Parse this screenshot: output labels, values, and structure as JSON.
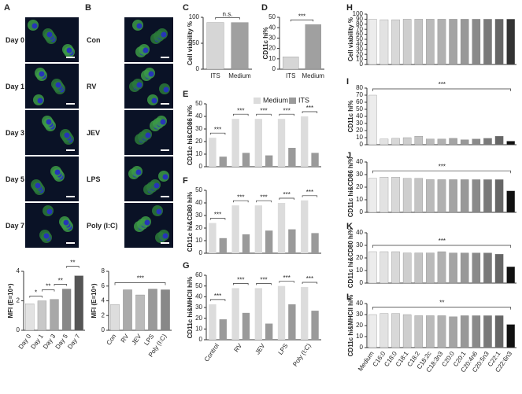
{
  "image_panels": [
    {
      "label": "A",
      "rows": [
        "Day 0",
        "Day 1",
        "Day 3",
        "Day 5",
        "Day 7"
      ]
    },
    {
      "label": "B",
      "rows": [
        "Con",
        "RV",
        "JEV",
        "LPS",
        "Poly (I:C)"
      ]
    }
  ],
  "chart_data": [
    {
      "type": "bar",
      "ylabel": "MFI (E=10⁵)",
      "categories": [
        "Day 0",
        "Day 1",
        "Day 3",
        "Day 5",
        "Day 7"
      ],
      "values": [
        1.8,
        2.0,
        2.1,
        2.8,
        3.7
      ],
      "colors": [
        "#e2e2e2",
        "#c8c8c8",
        "#a8a8a8",
        "#888888",
        "#555555"
      ],
      "ylim": [
        0,
        4
      ],
      "yticks": [
        0,
        2,
        4
      ],
      "annotations": [
        "*",
        "**",
        "**",
        "**"
      ]
    },
    {
      "type": "bar",
      "ylabel": "MFI (E=10⁵)",
      "categories": [
        "Con",
        "RV",
        "JEV",
        "LPS",
        "Poly (I:C)"
      ],
      "values": [
        3.5,
        5.5,
        4.8,
        5.6,
        5.5
      ],
      "colors": [
        "#dddddd",
        "#aaaaaa",
        "#bbbbbb",
        "#999999",
        "#888888"
      ],
      "ylim": [
        0,
        8
      ],
      "yticks": [
        0,
        2,
        4,
        6,
        8
      ],
      "annotations": [
        "***"
      ]
    },
    {
      "type": "bar",
      "label": "C",
      "ylabel": "Cell viability %",
      "categories": [
        "ITS",
        "Medium"
      ],
      "values": [
        90,
        90
      ],
      "colors": [
        "#d6d6d6",
        "#a0a0a0"
      ],
      "ylim": [
        0,
        100
      ],
      "yticks": [
        0,
        50,
        100
      ],
      "annotations": [
        "n.s."
      ]
    },
    {
      "type": "bar",
      "label": "D",
      "ylabel": "CD11c hi%",
      "categories": [
        "ITS",
        "Medium"
      ],
      "values": [
        12,
        43
      ],
      "colors": [
        "#d6d6d6",
        "#a0a0a0"
      ],
      "ylim": [
        0,
        50
      ],
      "yticks": [
        0,
        10,
        20,
        30,
        40,
        50
      ],
      "annotations": [
        "***"
      ]
    },
    {
      "type": "grouped_bar",
      "label": "E",
      "ylabel": "CD11c hi&CD86 hi%",
      "series": [
        {
          "name": "Medium",
          "color": "#dcdcdc",
          "values": [
            23,
            38,
            38,
            38,
            40
          ]
        },
        {
          "name": "ITS",
          "color": "#9a9a9a",
          "values": [
            8,
            11,
            9,
            15,
            11
          ]
        }
      ],
      "ylim": [
        0,
        50
      ],
      "yticks": [
        0,
        10,
        20,
        30,
        40,
        50
      ],
      "annotations": [
        "***",
        "***",
        "***",
        "***",
        "***"
      ]
    },
    {
      "type": "grouped_bar",
      "label": "F",
      "ylabel": "CD11c hi&CD80 hi%",
      "series": [
        {
          "color": "#dcdcdc",
          "values": [
            24,
            38,
            38,
            40,
            42
          ]
        },
        {
          "color": "#9a9a9a",
          "values": [
            12,
            15,
            18,
            19,
            16
          ]
        }
      ],
      "ylim": [
        0,
        50
      ],
      "yticks": [
        0,
        10,
        20,
        30,
        40,
        50
      ],
      "annotations": [
        "***",
        "***",
        "***",
        "***",
        "***"
      ]
    },
    {
      "type": "grouped_bar",
      "label": "G",
      "ylabel": "CD11c hi&MHCII hi%",
      "categories": [
        "Control",
        "RV",
        "JEV",
        "LPS",
        "Poly (I:C)"
      ],
      "series": [
        {
          "color": "#dcdcdc",
          "values": [
            33,
            48,
            48,
            50,
            49
          ]
        },
        {
          "color": "#9a9a9a",
          "values": [
            19,
            25,
            15,
            33,
            27
          ]
        }
      ],
      "ylim": [
        0,
        60
      ],
      "yticks": [
        0,
        10,
        20,
        30,
        40,
        50,
        60
      ],
      "annotations": [
        "***",
        "***",
        "***",
        "***",
        "***"
      ]
    },
    {
      "type": "bar",
      "label": "H",
      "ylabel": "Cell viability %",
      "values": [
        90,
        89,
        89,
        90,
        90,
        90,
        90,
        90,
        90,
        90,
        90,
        90,
        90
      ],
      "colors": [
        "#ececec",
        "#e2e2e2",
        "#d8d8d8",
        "#cecece",
        "#c4c4c4",
        "#bababa",
        "#b0b0b0",
        "#a4a4a4",
        "#989898",
        "#8a8a8a",
        "#7a7a7a",
        "#666666",
        "#333333"
      ],
      "ylim": [
        0,
        100
      ],
      "yticks": [
        0,
        10,
        20,
        30,
        40,
        50,
        60,
        70,
        80,
        90,
        100
      ]
    },
    {
      "type": "bar",
      "label": "I",
      "ylabel": "CD11c hi%",
      "values": [
        70,
        8,
        9,
        10,
        12,
        8,
        8,
        9,
        7,
        8,
        9,
        12,
        5
      ],
      "colors": [
        "#ececec",
        "#e2e2e2",
        "#d8d8d8",
        "#cecece",
        "#c4c4c4",
        "#bababa",
        "#b0b0b0",
        "#a4a4a4",
        "#989898",
        "#8a8a8a",
        "#7a7a7a",
        "#666666",
        "#111111"
      ],
      "ylim": [
        0,
        80
      ],
      "yticks": [
        0,
        10,
        20,
        30,
        40,
        50,
        60,
        70,
        80
      ],
      "annotations": [
        "***"
      ]
    },
    {
      "type": "bar",
      "label": "J",
      "ylabel": "CD11c hi&CD86 hi%",
      "values": [
        27,
        28,
        28,
        27,
        27,
        26,
        26,
        26,
        26,
        26,
        26,
        26,
        17
      ],
      "colors": [
        "#ececec",
        "#e2e2e2",
        "#d8d8d8",
        "#cecece",
        "#c4c4c4",
        "#bababa",
        "#b0b0b0",
        "#a4a4a4",
        "#989898",
        "#8a8a8a",
        "#7a7a7a",
        "#666666",
        "#111111"
      ],
      "ylim": [
        0,
        40
      ],
      "yticks": [
        0,
        10,
        20,
        30,
        40
      ],
      "annotations": [
        "***"
      ]
    },
    {
      "type": "bar",
      "label": "K",
      "ylabel": "CD11c hi&CD80 hi%",
      "values": [
        25,
        25,
        25,
        24,
        24,
        24,
        25,
        24,
        24,
        24,
        24,
        23,
        13
      ],
      "colors": [
        "#ececec",
        "#e2e2e2",
        "#d8d8d8",
        "#cecece",
        "#c4c4c4",
        "#bababa",
        "#b0b0b0",
        "#a4a4a4",
        "#989898",
        "#8a8a8a",
        "#7a7a7a",
        "#666666",
        "#111111"
      ],
      "ylim": [
        0,
        40
      ],
      "yticks": [
        0,
        10,
        20,
        30,
        40
      ],
      "annotations": [
        "***"
      ]
    },
    {
      "type": "bar",
      "label": "L",
      "ylabel": "CD11c hi&MHCII hi%",
      "categories": [
        "Medium",
        "C16:0",
        "C18:0",
        "C18:1",
        "C18:2",
        "C18:2c",
        "C18:3n3",
        "C20:0",
        "C20:1",
        "C20:4n6",
        "C20:5n3",
        "C22:1",
        "C22:6n3"
      ],
      "values": [
        30,
        31,
        31,
        30,
        29,
        29,
        29,
        28,
        29,
        29,
        29,
        29,
        21
      ],
      "colors": [
        "#ececec",
        "#e2e2e2",
        "#d8d8d8",
        "#cecece",
        "#c4c4c4",
        "#bababa",
        "#b0b0b0",
        "#a4a4a4",
        "#989898",
        "#8a8a8a",
        "#7a7a7a",
        "#666666",
        "#111111"
      ],
      "ylim": [
        0,
        40
      ],
      "yticks": [
        0,
        10,
        20,
        30,
        40
      ],
      "annotations": [
        "**"
      ]
    }
  ]
}
